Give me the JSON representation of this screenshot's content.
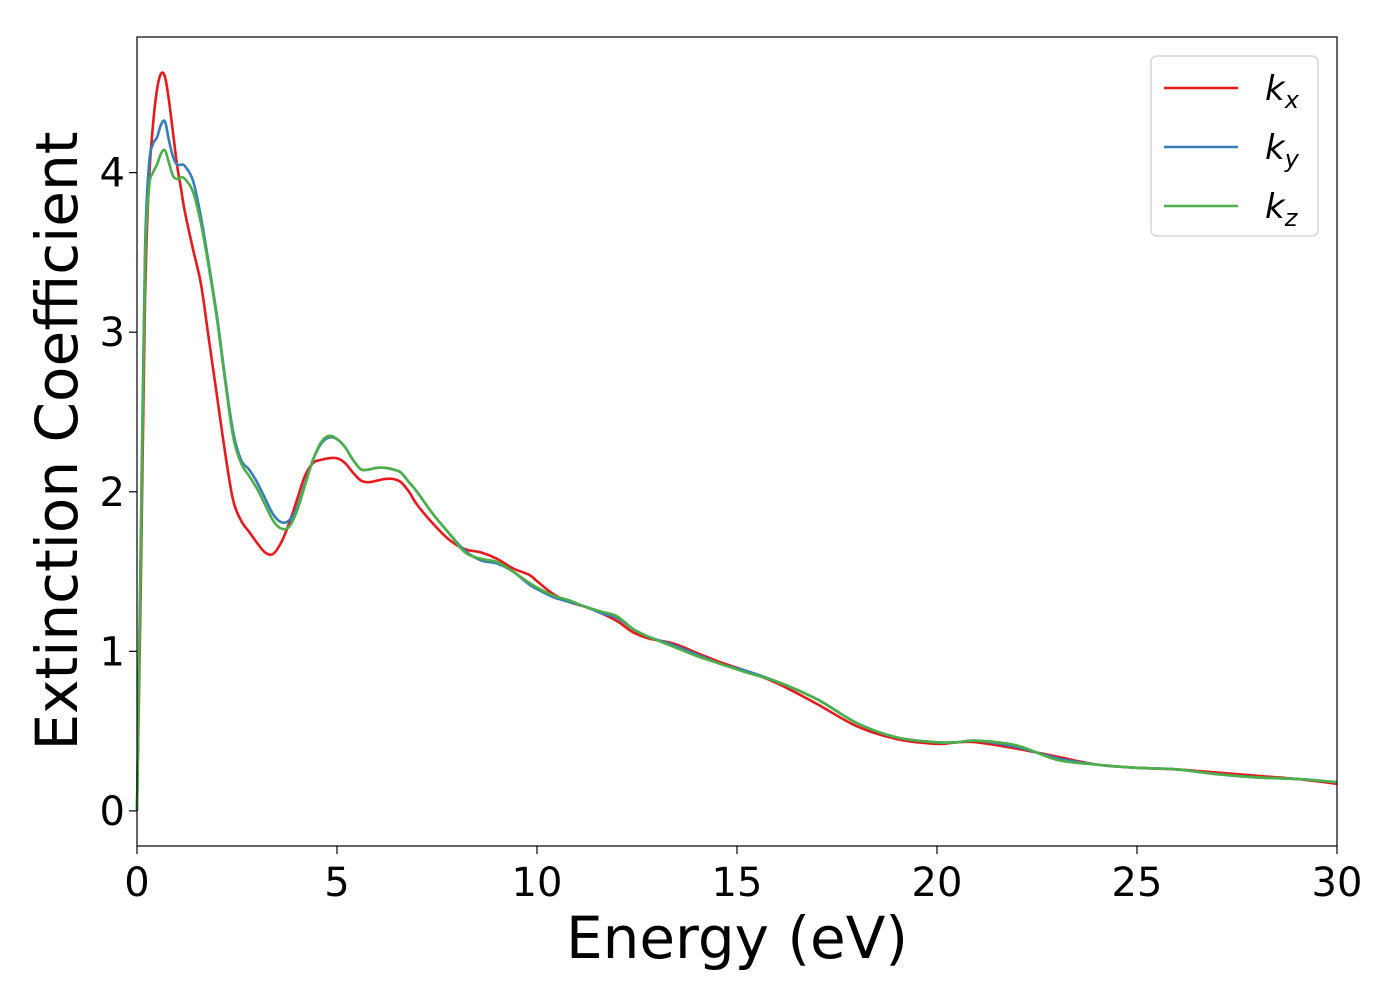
{
  "chart_data": {
    "type": "line",
    "xlabel": "Energy (eV)",
    "ylabel": "Extinction Coefficient",
    "xlim": [
      0,
      30
    ],
    "ylim": [
      -0.22,
      4.85
    ],
    "xticks": [
      0,
      5,
      10,
      15,
      20,
      25,
      30
    ],
    "yticks": [
      0,
      1,
      2,
      3,
      4
    ],
    "grid": false,
    "legend_position": "top-right",
    "series": [
      {
        "name": "k",
        "subscript": "x",
        "color": "#e41a1c",
        "x": [
          0,
          0.1,
          0.2,
          0.3,
          0.4,
          0.5,
          0.6,
          0.7,
          0.8,
          0.9,
          1.0,
          1.1,
          1.2,
          1.4,
          1.6,
          1.8,
          2.0,
          2.2,
          2.4,
          2.6,
          2.8,
          3.0,
          3.2,
          3.4,
          3.6,
          3.8,
          4.0,
          4.2,
          4.4,
          4.6,
          4.8,
          5.0,
          5.2,
          5.4,
          5.6,
          5.8,
          6.0,
          6.2,
          6.4,
          6.6,
          6.8,
          7.0,
          7.4,
          7.8,
          8.2,
          8.6,
          9.0,
          9.4,
          9.8,
          10.0,
          10.4,
          10.8,
          11.2,
          11.6,
          12.0,
          12.4,
          12.8,
          13.4,
          14.0,
          14.6,
          15.2,
          16.0,
          17.0,
          18.0,
          19.0,
          20.0,
          20.5,
          21.0,
          22.0,
          23.0,
          24.0,
          25.0,
          26.0,
          27.0,
          28.0,
          29.0,
          30.0
        ],
        "y": [
          0.0,
          1.5,
          3.2,
          3.95,
          4.3,
          4.52,
          4.62,
          4.6,
          4.45,
          4.25,
          4.05,
          3.9,
          3.75,
          3.52,
          3.3,
          2.95,
          2.6,
          2.25,
          1.95,
          1.82,
          1.75,
          1.68,
          1.62,
          1.61,
          1.68,
          1.8,
          1.95,
          2.1,
          2.18,
          2.2,
          2.21,
          2.21,
          2.18,
          2.12,
          2.07,
          2.06,
          2.07,
          2.08,
          2.08,
          2.06,
          2.0,
          1.92,
          1.8,
          1.7,
          1.64,
          1.62,
          1.58,
          1.52,
          1.48,
          1.44,
          1.36,
          1.31,
          1.28,
          1.24,
          1.19,
          1.12,
          1.08,
          1.05,
          0.99,
          0.93,
          0.88,
          0.8,
          0.67,
          0.53,
          0.45,
          0.42,
          0.43,
          0.43,
          0.39,
          0.34,
          0.29,
          0.27,
          0.26,
          0.24,
          0.22,
          0.2,
          0.17
        ]
      },
      {
        "name": "k",
        "subscript": "y",
        "color": "#377eb8",
        "x": [
          0,
          0.1,
          0.2,
          0.3,
          0.4,
          0.5,
          0.6,
          0.7,
          0.8,
          0.9,
          1.0,
          1.1,
          1.2,
          1.4,
          1.6,
          1.8,
          2.0,
          2.2,
          2.4,
          2.6,
          2.8,
          3.0,
          3.2,
          3.4,
          3.6,
          3.8,
          4.0,
          4.2,
          4.4,
          4.6,
          4.8,
          5.0,
          5.2,
          5.4,
          5.6,
          5.8,
          6.0,
          6.2,
          6.4,
          6.6,
          6.8,
          7.0,
          7.4,
          7.8,
          8.2,
          8.6,
          9.0,
          9.4,
          9.8,
          10.0,
          10.4,
          10.8,
          11.2,
          11.6,
          12.0,
          12.4,
          12.8,
          13.4,
          14.0,
          14.6,
          15.2,
          16.0,
          17.0,
          18.0,
          19.0,
          20.0,
          20.5,
          21.0,
          22.0,
          23.0,
          24.0,
          25.0,
          26.0,
          27.0,
          28.0,
          29.0,
          30.0
        ],
        "y": [
          0.0,
          1.8,
          3.5,
          4.05,
          4.18,
          4.22,
          4.3,
          4.32,
          4.2,
          4.1,
          4.05,
          4.05,
          4.04,
          3.95,
          3.72,
          3.42,
          3.1,
          2.72,
          2.38,
          2.2,
          2.14,
          2.06,
          1.96,
          1.86,
          1.81,
          1.82,
          1.9,
          2.05,
          2.2,
          2.3,
          2.34,
          2.33,
          2.28,
          2.2,
          2.14,
          2.14,
          2.15,
          2.15,
          2.14,
          2.12,
          2.06,
          2.0,
          1.86,
          1.74,
          1.63,
          1.57,
          1.55,
          1.5,
          1.42,
          1.39,
          1.34,
          1.31,
          1.28,
          1.24,
          1.21,
          1.14,
          1.09,
          1.04,
          0.98,
          0.92,
          0.88,
          0.81,
          0.7,
          0.55,
          0.46,
          0.43,
          0.43,
          0.44,
          0.4,
          0.33,
          0.29,
          0.27,
          0.26,
          0.23,
          0.21,
          0.2,
          0.18
        ]
      },
      {
        "name": "k",
        "subscript": "z",
        "color": "#4daf4a",
        "x": [
          0,
          0.1,
          0.2,
          0.3,
          0.4,
          0.5,
          0.6,
          0.7,
          0.8,
          0.9,
          1.0,
          1.1,
          1.2,
          1.4,
          1.6,
          1.8,
          2.0,
          2.2,
          2.4,
          2.6,
          2.8,
          3.0,
          3.2,
          3.4,
          3.6,
          3.8,
          4.0,
          4.2,
          4.4,
          4.6,
          4.8,
          5.0,
          5.2,
          5.4,
          5.6,
          5.8,
          6.0,
          6.2,
          6.4,
          6.6,
          6.8,
          7.0,
          7.4,
          7.8,
          8.2,
          8.6,
          9.0,
          9.4,
          9.8,
          10.0,
          10.4,
          10.8,
          11.2,
          11.6,
          12.0,
          12.4,
          12.8,
          13.4,
          14.0,
          14.6,
          15.2,
          16.0,
          17.0,
          18.0,
          19.0,
          20.0,
          20.5,
          21.0,
          22.0,
          23.0,
          24.0,
          25.0,
          26.0,
          27.0,
          28.0,
          29.0,
          30.0
        ],
        "y": [
          0.0,
          1.7,
          3.4,
          3.9,
          4.0,
          4.05,
          4.12,
          4.14,
          4.06,
          3.98,
          3.96,
          3.97,
          3.96,
          3.88,
          3.68,
          3.4,
          3.08,
          2.7,
          2.35,
          2.18,
          2.1,
          2.02,
          1.92,
          1.82,
          1.77,
          1.78,
          1.88,
          2.04,
          2.2,
          2.31,
          2.35,
          2.33,
          2.28,
          2.2,
          2.14,
          2.14,
          2.15,
          2.15,
          2.14,
          2.12,
          2.06,
          2.0,
          1.86,
          1.74,
          1.62,
          1.58,
          1.56,
          1.5,
          1.43,
          1.4,
          1.35,
          1.32,
          1.28,
          1.25,
          1.22,
          1.14,
          1.09,
          1.03,
          0.97,
          0.92,
          0.87,
          0.81,
          0.7,
          0.55,
          0.46,
          0.43,
          0.43,
          0.44,
          0.41,
          0.32,
          0.29,
          0.27,
          0.26,
          0.23,
          0.21,
          0.2,
          0.18
        ]
      }
    ]
  }
}
